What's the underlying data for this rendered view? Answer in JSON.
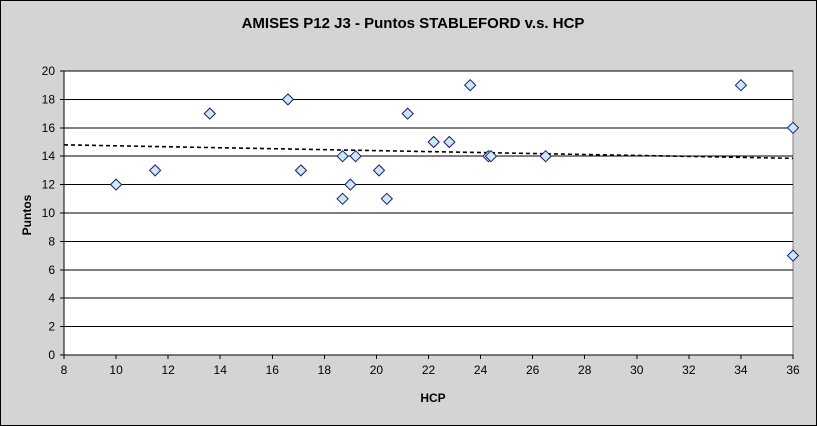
{
  "chart_data": {
    "type": "scatter",
    "title": "AMISES P12 J3 - Puntos STABLEFORD v.s. HCP",
    "xlabel": "HCP",
    "ylabel": "Puntos",
    "xlim": [
      8,
      36
    ],
    "ylim": [
      0,
      20
    ],
    "xticks": [
      8,
      10,
      12,
      14,
      16,
      18,
      20,
      22,
      24,
      26,
      28,
      30,
      32,
      34,
      36
    ],
    "yticks": [
      0,
      2,
      4,
      6,
      8,
      10,
      12,
      14,
      16,
      18,
      20
    ],
    "grid": "horizontal",
    "legend": "none",
    "marker": "diamond",
    "marker_fill": "#cce8f4",
    "marker_edge": "#1a1a6e",
    "series": [
      {
        "x": [
          10.0,
          11.5,
          13.6,
          16.6,
          17.1,
          18.7,
          18.7,
          19.0,
          19.2,
          20.1,
          20.4,
          21.2,
          22.2,
          22.8,
          23.6,
          24.3,
          24.4,
          26.5,
          34.0,
          36.0,
          36.0
        ],
        "y": [
          12,
          13,
          17,
          18,
          13,
          14,
          11,
          12,
          14,
          13,
          11,
          17,
          15,
          15,
          19,
          14,
          14,
          14,
          19,
          16,
          7
        ]
      }
    ],
    "trendline": {
      "type": "linear",
      "style": "dashed",
      "x": [
        8,
        36
      ],
      "y": [
        14.8,
        13.85
      ]
    }
  }
}
